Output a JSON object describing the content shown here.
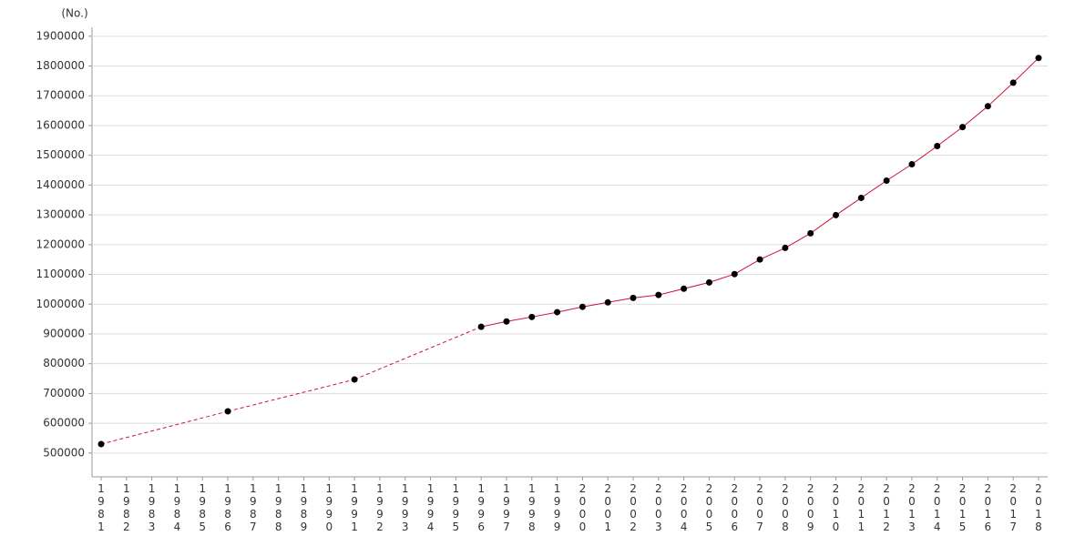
{
  "chart_data": {
    "type": "line",
    "y_label": "(No.)",
    "categories": [
      "1981",
      "1982",
      "1983",
      "1984",
      "1985",
      "1986",
      "1987",
      "1988",
      "1989",
      "1990",
      "1991",
      "1992",
      "1993",
      "1994",
      "1995",
      "1996",
      "1997",
      "1998",
      "1999",
      "2000",
      "2001",
      "2002",
      "2003",
      "2004",
      "2005",
      "2006",
      "2007",
      "2008",
      "2009",
      "2010",
      "2011",
      "2012",
      "2013",
      "2014",
      "2015",
      "2016",
      "2017",
      "2018"
    ],
    "series": [
      {
        "color": "#d0103a",
        "values": [
          530000,
          null,
          null,
          null,
          null,
          640000,
          null,
          null,
          null,
          null,
          747000,
          null,
          null,
          null,
          null,
          924000,
          942000,
          957000,
          973000,
          991000,
          1006000,
          1021000,
          1031000,
          1052000,
          1073000,
          1101000,
          1150000,
          1189000,
          1238000,
          1299000,
          1357000,
          1415000,
          1470000,
          1531000,
          1595000,
          1665000,
          1744000,
          1827000
        ]
      }
    ],
    "ylim": [
      420000,
      1930000
    ],
    "yticks": [
      500000,
      600000,
      700000,
      800000,
      900000,
      1000000,
      1100000,
      1200000,
      1300000,
      1400000,
      1500000,
      1600000,
      1700000,
      1800000,
      1900000
    ],
    "grid": true
  }
}
